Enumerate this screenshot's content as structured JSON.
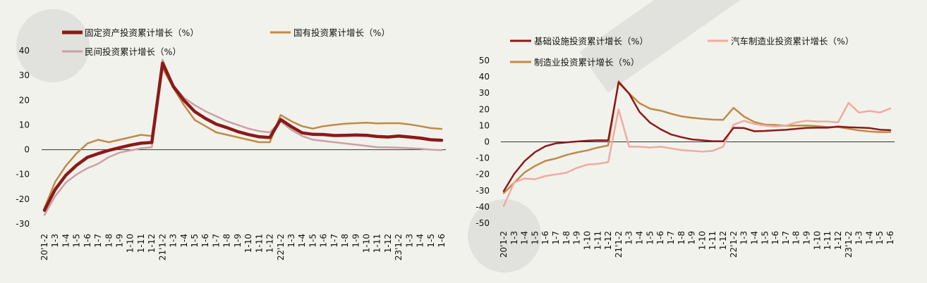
{
  "chart_data": [
    {
      "type": "line",
      "ylim": [
        -30,
        40
      ],
      "yticks": [
        -30,
        -20,
        -10,
        0,
        10,
        20,
        30,
        40
      ],
      "x_labels": [
        "20'1-2",
        "1-3",
        "1-4",
        "1-5",
        "1-6",
        "1-7",
        "1-8",
        "1-9",
        "1-10",
        "1-11",
        "1-12",
        "21'1-2",
        "1-3",
        "1-4",
        "1-5",
        "1-6",
        "1-7",
        "1-8",
        "1-9",
        "1-10",
        "1-11",
        "1-12",
        "22'1-2",
        "1-3",
        "1-4",
        "1-5",
        "1-6",
        "1-7",
        "1-8",
        "1-9",
        "1-10",
        "1-11",
        "1-12",
        "23'1-2",
        "1-3",
        "1-4",
        "1-5",
        "1-6"
      ],
      "x": [
        "20'1-2",
        "1-3",
        "1-4",
        "1-5",
        "1-6",
        "1-7",
        "1-8",
        "1-9",
        "1-10",
        "1-11",
        "1-12",
        "21'1-2",
        "1-3",
        "1-4",
        "1-5",
        "1-6",
        "1-7",
        "1-8",
        "1-9",
        "1-10",
        "1-11",
        "1-12",
        "22'1-2",
        "1-3",
        "1-4",
        "1-5",
        "1-6",
        "1-7",
        "1-8",
        "1-9",
        "1-10",
        "1-11",
        "1-12",
        "23'1-2",
        "1-3",
        "1-4",
        "1-5",
        "1-6"
      ],
      "series": [
        {
          "name": "固定资产投资累计增长（%）",
          "color": "#8b1a1a",
          "width": 4.5,
          "values": [
            -24.5,
            -16.1,
            -10.3,
            -6.3,
            -3.1,
            -1.6,
            -0.3,
            0.8,
            1.8,
            2.6,
            2.9,
            35.0,
            25.6,
            19.9,
            15.4,
            12.6,
            10.3,
            8.9,
            7.3,
            6.1,
            5.2,
            4.9,
            12.2,
            9.3,
            6.8,
            6.2,
            6.1,
            5.7,
            5.8,
            5.9,
            5.8,
            5.3,
            5.1,
            5.5,
            5.1,
            4.7,
            4.0,
            3.8
          ]
        },
        {
          "name": "国有投资累计增长（%）",
          "color": "#c08a45",
          "width": 2.5,
          "values": [
            -23.6,
            -13.0,
            -6.5,
            -1.5,
            2.5,
            4.0,
            3.0,
            4.0,
            5.0,
            6.0,
            5.5,
            33.0,
            25.0,
            18.0,
            12.0,
            9.5,
            7.0,
            6.0,
            5.0,
            4.0,
            3.0,
            3.0,
            14.0,
            11.5,
            9.5,
            8.5,
            9.5,
            10.0,
            10.5,
            10.7,
            10.9,
            10.6,
            10.7,
            10.7,
            10.2,
            9.5,
            8.7,
            8.4
          ]
        },
        {
          "name": "民间投资累计增长（%）",
          "color": "#c9a1a5",
          "width": 2.5,
          "values": [
            -26.4,
            -18.8,
            -13.3,
            -10.0,
            -7.5,
            -5.7,
            -3.0,
            -1.2,
            -0.3,
            0.5,
            1.0,
            36.4,
            26.0,
            21.0,
            18.0,
            15.5,
            13.5,
            11.5,
            10.0,
            8.5,
            7.5,
            7.0,
            11.4,
            8.0,
            5.5,
            4.0,
            3.5,
            3.0,
            2.5,
            2.0,
            1.5,
            1.0,
            0.9,
            0.8,
            0.6,
            0.4,
            0.0,
            -0.2
          ]
        }
      ]
    },
    {
      "type": "line",
      "ylim": [
        -50,
        50
      ],
      "yticks": [
        -50,
        -40,
        -30,
        -20,
        -10,
        0,
        10,
        20,
        30,
        40,
        50
      ],
      "x_labels": [
        "20'1-2",
        "1-3",
        "1-4",
        "1-5",
        "1-6",
        "1-7",
        "1-8",
        "1-9",
        "1-10",
        "1-11",
        "1-12",
        "21'1-2",
        "1-3",
        "1-4",
        "1-5",
        "1-6",
        "1-7",
        "1-8",
        "1-9",
        "1-10",
        "1-11",
        "1-12",
        "22'1-2",
        "1-3",
        "1-4",
        "1-5",
        "1-6",
        "1-7",
        "1-8",
        "1-9",
        "1-10",
        "1-11",
        "1-12",
        "23'1-2",
        "1-3",
        "1-4",
        "1-5",
        "1-6"
      ],
      "x": [
        "20'1-2",
        "1-3",
        "1-4",
        "1-5",
        "1-6",
        "1-7",
        "1-8",
        "1-9",
        "1-10",
        "1-11",
        "1-12",
        "21'1-2",
        "1-3",
        "1-4",
        "1-5",
        "1-6",
        "1-7",
        "1-8",
        "1-9",
        "1-10",
        "1-11",
        "1-12",
        "22'1-2",
        "1-3",
        "1-4",
        "1-5",
        "1-6",
        "1-7",
        "1-8",
        "1-9",
        "1-10",
        "1-11",
        "1-12",
        "23'1-2",
        "1-3",
        "1-4",
        "1-5",
        "1-6"
      ],
      "series": [
        {
          "name": "基础设施投资累计增长（%）",
          "color": "#8b1a1a",
          "width": 2.5,
          "values": [
            -30.3,
            -19.7,
            -11.8,
            -6.3,
            -2.7,
            -0.9,
            -0.3,
            0.2,
            0.7,
            1.0,
            0.9,
            36.6,
            29.7,
            18.4,
            11.8,
            7.8,
            4.6,
            2.9,
            1.5,
            1.0,
            0.4,
            0.4,
            8.6,
            8.5,
            6.5,
            6.7,
            7.1,
            7.4,
            8.0,
            8.6,
            8.7,
            8.7,
            9.4,
            9.0,
            8.8,
            8.5,
            7.5,
            7.2
          ]
        },
        {
          "name": "汽车制造业投资累计增长（%）",
          "color": "#f2aaa0",
          "width": 2.5,
          "values": [
            -39.5,
            -25.0,
            -22.5,
            -23.0,
            -21.0,
            -20.0,
            -19.0,
            -16.0,
            -14.0,
            -13.5,
            -12.5,
            20.0,
            -3.0,
            -3.0,
            -3.5,
            -3.0,
            -4.0,
            -5.0,
            -5.5,
            -6.0,
            -5.5,
            -3.0,
            10.5,
            13.0,
            11.0,
            10.0,
            9.5,
            10.0,
            12.0,
            13.0,
            12.5,
            12.5,
            12.0,
            24.0,
            18.0,
            19.0,
            18.0,
            20.5
          ]
        },
        {
          "name": "制造业投资累计增长（%）",
          "color": "#c08a45",
          "width": 2.5,
          "values": [
            -31.5,
            -25.2,
            -18.8,
            -14.8,
            -11.7,
            -10.2,
            -8.1,
            -6.5,
            -5.3,
            -3.5,
            -2.2,
            37.3,
            29.8,
            23.8,
            20.4,
            19.2,
            17.3,
            15.7,
            14.8,
            14.2,
            13.7,
            13.5,
            20.9,
            15.6,
            12.2,
            10.6,
            10.4,
            9.9,
            10.0,
            10.1,
            9.7,
            9.1,
            9.1,
            8.1,
            7.0,
            6.4,
            6.0,
            6.0
          ]
        }
      ]
    }
  ]
}
